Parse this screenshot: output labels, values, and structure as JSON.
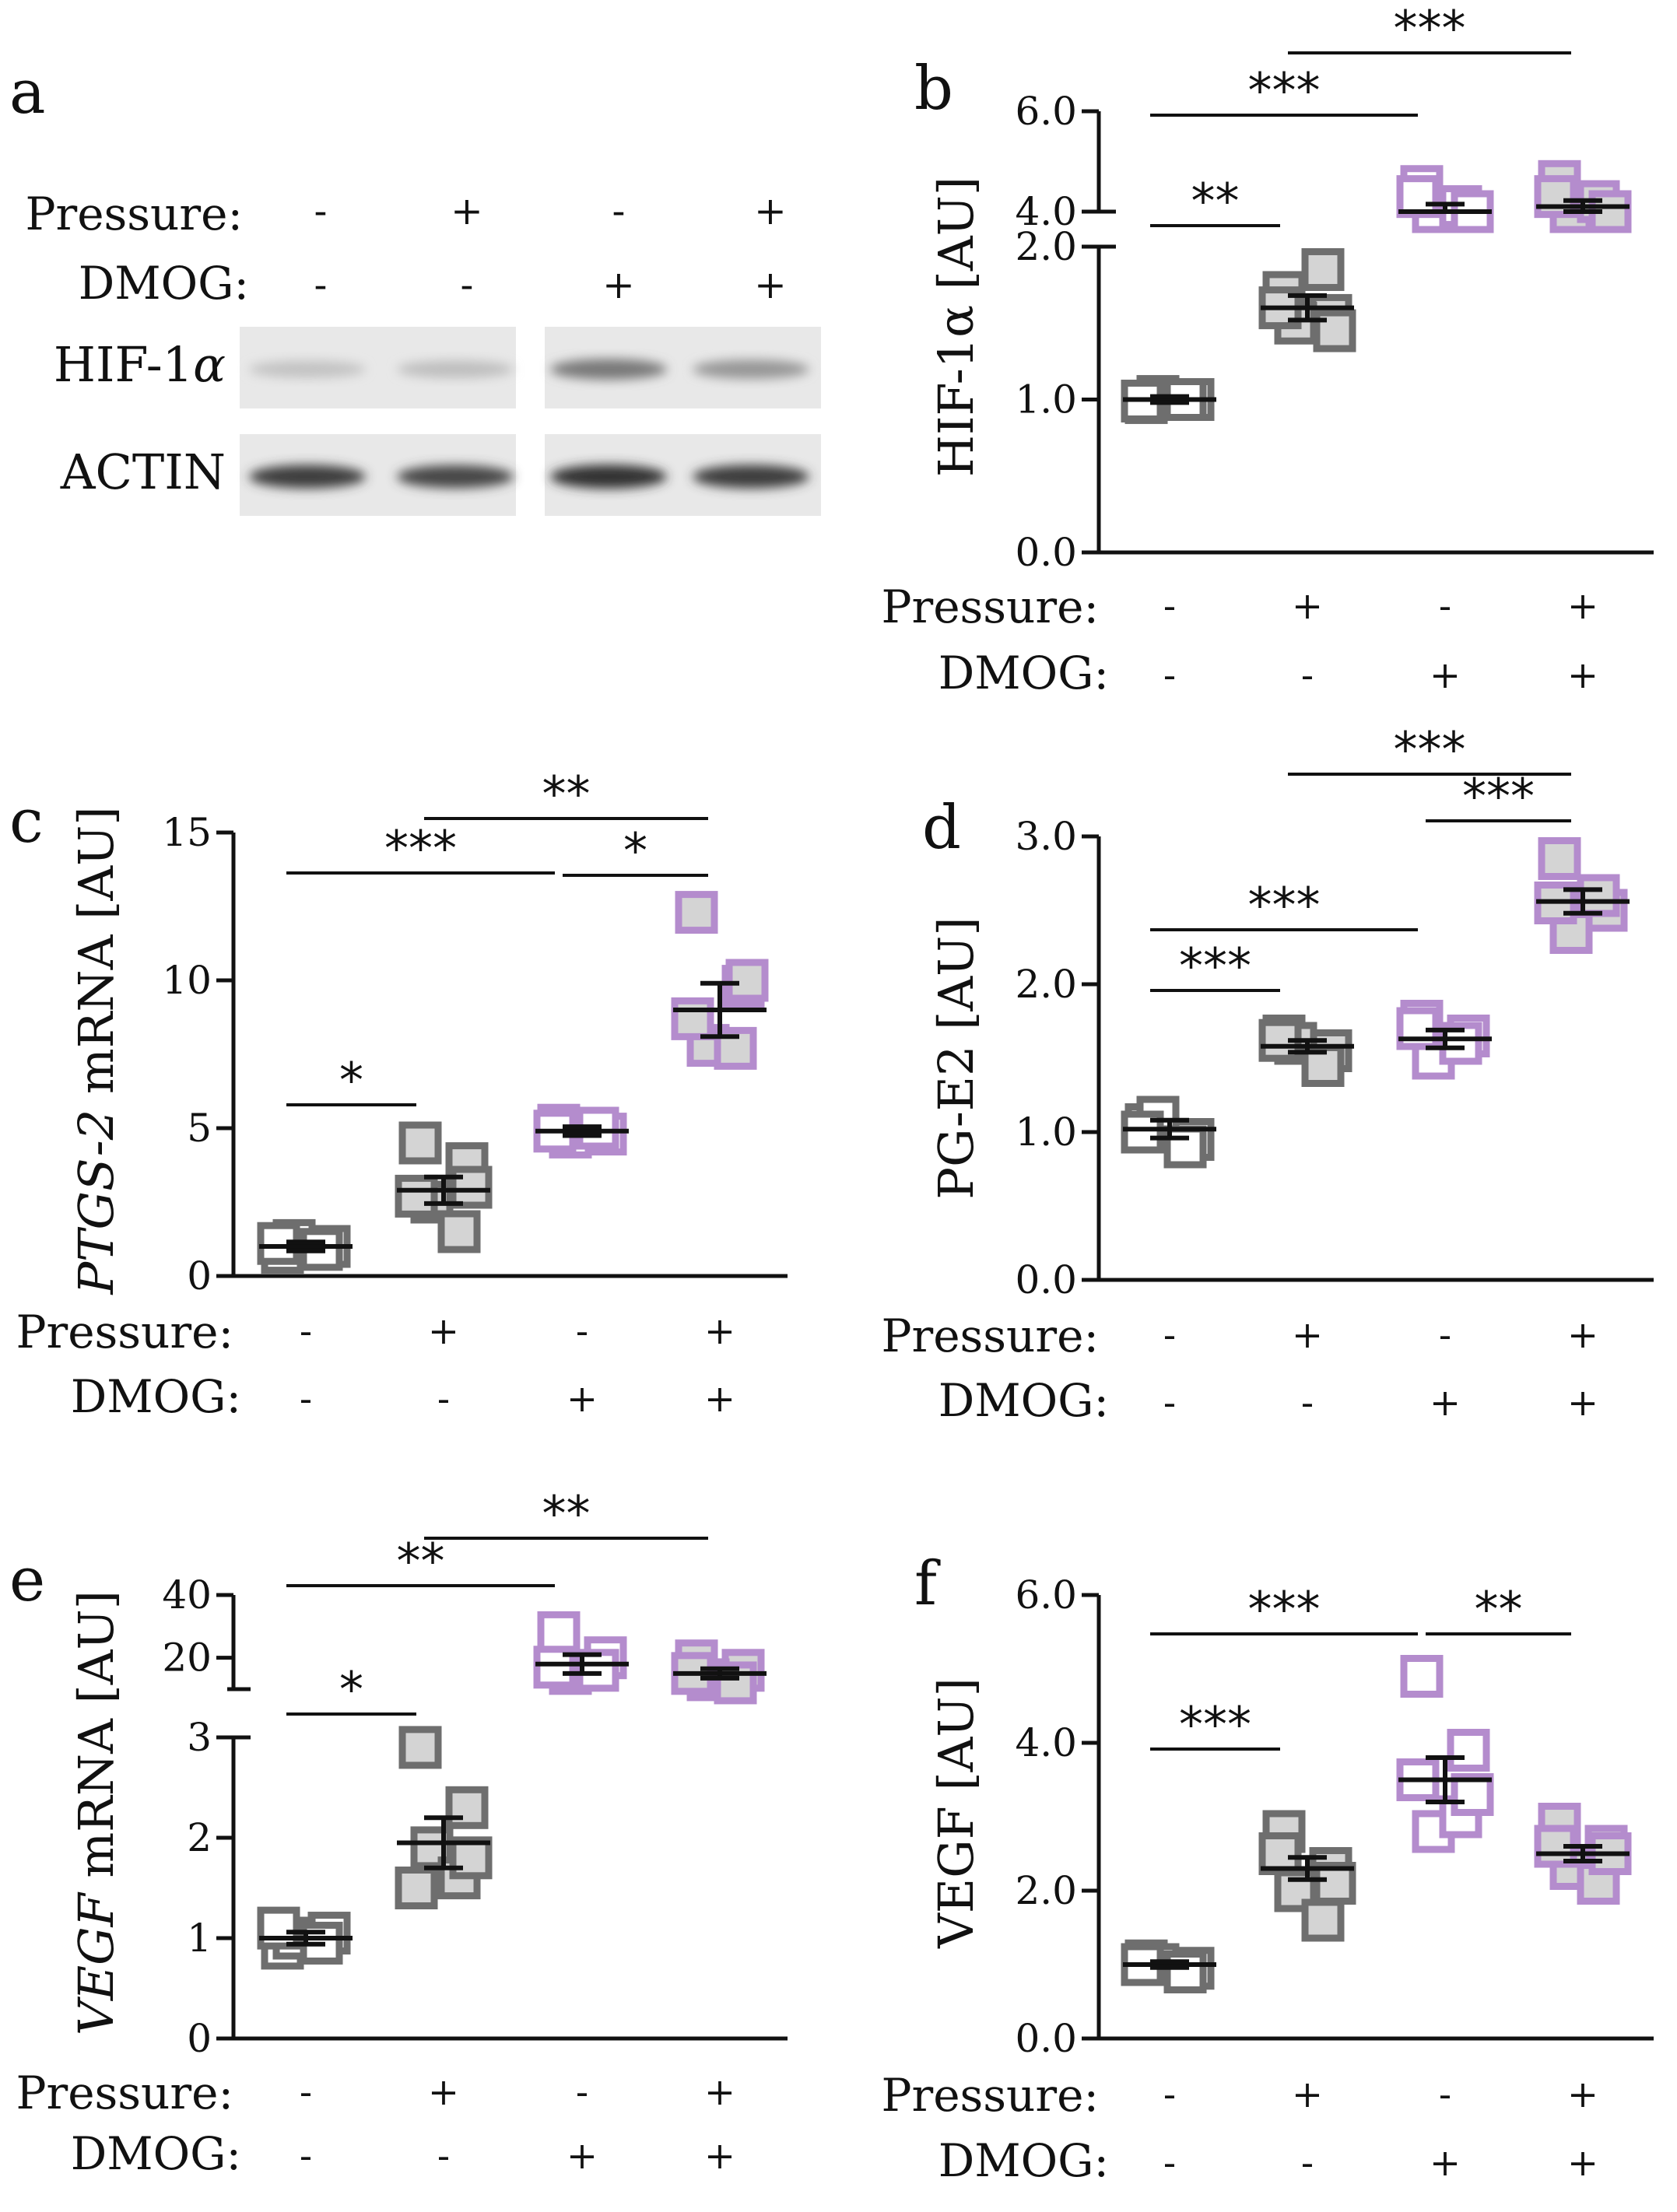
{
  "colors": {
    "gray_stroke": "#6e6e6e",
    "purple_stroke": "#b48ccd",
    "gray_fill": "#d4d4d4",
    "open_fill": "#ffffff",
    "axis": "#111111"
  },
  "condition_labels": {
    "pressure": "Pressure:",
    "dmog": "DMOG:"
  },
  "conditions": {
    "pressure": [
      "-",
      "+",
      "-",
      "+"
    ],
    "dmog": [
      "-",
      "-",
      "+",
      "+"
    ]
  },
  "western_blot": {
    "panel_letter": "a",
    "pressure_label": "Pressure:",
    "dmog_label": "DMOG:",
    "pressure_signs": [
      "-",
      "+",
      "-",
      "+"
    ],
    "dmog_signs": [
      "-",
      "-",
      "+",
      "+"
    ],
    "rows": [
      {
        "label": "HIF-1",
        "label_greek": "α",
        "band_intensity": [
          0.18,
          0.2,
          0.55,
          0.4
        ]
      },
      {
        "label": "ACTIN",
        "label_greek": "",
        "band_intensity": [
          0.85,
          0.8,
          0.9,
          0.85
        ]
      }
    ]
  },
  "chart_data": [
    {
      "panel": "b",
      "type": "scatter",
      "ylabel": "HIF-1α [AU]",
      "ylabel_italic": "",
      "broken_axis": true,
      "lower_range": [
        0,
        2
      ],
      "lower_ticks": [
        "0.0",
        "1.0",
        "2.0"
      ],
      "upper_range": [
        4,
        6
      ],
      "upper_ticks": [
        "4.0",
        "6.0"
      ],
      "groups": [
        {
          "mean": 1.0,
          "sem": 0.02,
          "points": [
            0.98,
            1.0,
            1.02,
            1.0,
            0.99
          ]
        },
        {
          "mean": 1.6,
          "sem": 0.08,
          "points": [
            1.7,
            1.55,
            1.5,
            1.85,
            1.6,
            1.45
          ]
        },
        {
          "mean": 4.0,
          "sem": 0.15,
          "points": [
            4.5,
            3.9,
            3.7,
            4.1,
            4.3,
            3.8
          ]
        },
        {
          "mean": 4.1,
          "sem": 0.12,
          "points": [
            4.6,
            3.95,
            3.85,
            4.2,
            4.3,
            4.0
          ]
        }
      ],
      "significance": [
        {
          "from": 0,
          "to": 1,
          "label": "**"
        },
        {
          "from": 0,
          "to": 2,
          "label": "***"
        },
        {
          "from": 1,
          "to": 3,
          "label": "***"
        }
      ]
    },
    {
      "panel": "c",
      "type": "scatter",
      "ylabel": " mRNA [AU]",
      "ylabel_italic": "PTGS-2",
      "broken_axis": false,
      "lower_range": [
        0,
        15
      ],
      "lower_ticks": [
        "0",
        "5",
        "10",
        "15"
      ],
      "groups": [
        {
          "mean": 1.0,
          "sem": 0.15,
          "points": [
            0.8,
            1.0,
            1.2,
            0.9,
            1.1
          ]
        },
        {
          "mean": 2.9,
          "sem": 0.45,
          "points": [
            4.5,
            3.8,
            2.5,
            1.5,
            2.7,
            3.0
          ]
        },
        {
          "mean": 4.9,
          "sem": 0.15,
          "points": [
            5.1,
            4.8,
            4.7,
            5.0,
            4.9
          ]
        },
        {
          "mean": 9.0,
          "sem": 0.9,
          "points": [
            12.3,
            9.8,
            7.8,
            7.7,
            8.7,
            10.0
          ]
        }
      ],
      "significance": [
        {
          "from": 0,
          "to": 1,
          "label": "*"
        },
        {
          "from": 0,
          "to": 2,
          "label": "***"
        },
        {
          "from": 2,
          "to": 3,
          "label": "*"
        },
        {
          "from": 1,
          "to": 3,
          "label": "**"
        }
      ]
    },
    {
      "panel": "d",
      "type": "scatter",
      "ylabel": "PG-E2 [AU]",
      "ylabel_italic": "",
      "broken_axis": false,
      "lower_range": [
        0,
        3
      ],
      "lower_ticks": [
        "0.0",
        "1.0",
        "2.0",
        "3.0"
      ],
      "groups": [
        {
          "mean": 1.02,
          "sem": 0.06,
          "points": [
            1.05,
            0.95,
            1.1,
            0.9,
            1.0
          ]
        },
        {
          "mean": 1.58,
          "sem": 0.04,
          "points": [
            1.65,
            1.55,
            1.6,
            1.45,
            1.62
          ]
        },
        {
          "mean": 1.63,
          "sem": 0.06,
          "points": [
            1.75,
            1.65,
            1.5,
            1.6,
            1.7
          ]
        },
        {
          "mean": 2.56,
          "sem": 0.08,
          "points": [
            2.85,
            2.5,
            2.35,
            2.6,
            2.55
          ]
        }
      ],
      "significance": [
        {
          "from": 0,
          "to": 1,
          "label": "***"
        },
        {
          "from": 0,
          "to": 2,
          "label": "***"
        },
        {
          "from": 2,
          "to": 3,
          "label": "***"
        },
        {
          "from": 1,
          "to": 3,
          "label": "***"
        }
      ]
    },
    {
      "panel": "e",
      "type": "scatter",
      "ylabel": " mRNA [AU]",
      "ylabel_italic": "VEGF",
      "broken_axis": true,
      "lower_range": [
        0,
        3
      ],
      "lower_ticks": [
        "0",
        "1",
        "2",
        "3"
      ],
      "upper_range": [
        10,
        40
      ],
      "upper_ticks": [
        "20",
        "40"
      ],
      "groups": [
        {
          "mean": 1.0,
          "sem": 0.06,
          "points": [
            0.9,
            1.05,
            1.0,
            0.95,
            1.1
          ]
        },
        {
          "mean": 1.95,
          "sem": 0.25,
          "points": [
            2.9,
            2.3,
            1.9,
            1.6,
            1.5,
            1.8
          ]
        },
        {
          "mean": 18.0,
          "sem": 3.0,
          "points": [
            28.0,
            20.0,
            15.0,
            16.0,
            17.0
          ]
        },
        {
          "mean": 15.0,
          "sem": 1.5,
          "points": [
            19.0,
            16.0,
            13.0,
            12.0,
            15.0
          ]
        }
      ],
      "significance": [
        {
          "from": 0,
          "to": 1,
          "label": "*"
        },
        {
          "from": 0,
          "to": 2,
          "label": "**"
        },
        {
          "from": 1,
          "to": 3,
          "label": "**"
        }
      ]
    },
    {
      "panel": "f",
      "type": "scatter",
      "ylabel": "VEGF [AU]",
      "ylabel_italic": "",
      "broken_axis": false,
      "lower_range": [
        0,
        6
      ],
      "lower_ticks": [
        "0.0",
        "2.0",
        "4.0",
        "6.0"
      ],
      "groups": [
        {
          "mean": 1.0,
          "sem": 0.04,
          "points": [
            1.05,
            0.95,
            1.0,
            0.9,
            1.0
          ]
        },
        {
          "mean": 2.3,
          "sem": 0.15,
          "points": [
            2.8,
            2.3,
            2.0,
            1.6,
            2.5,
            2.1
          ]
        },
        {
          "mean": 3.5,
          "sem": 0.3,
          "points": [
            4.9,
            3.9,
            2.8,
            3.0,
            3.5,
            3.3
          ]
        },
        {
          "mean": 2.5,
          "sem": 0.1,
          "points": [
            2.9,
            2.6,
            2.3,
            2.1,
            2.6,
            2.5
          ]
        }
      ],
      "significance": [
        {
          "from": 0,
          "to": 1,
          "label": "***"
        },
        {
          "from": 0,
          "to": 2,
          "label": "***"
        },
        {
          "from": 2,
          "to": 3,
          "label": "**"
        }
      ]
    }
  ]
}
